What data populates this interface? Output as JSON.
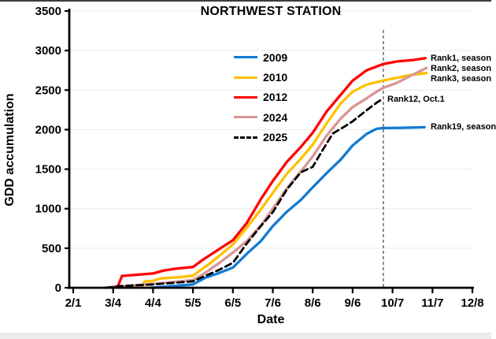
{
  "window": {
    "top_border_color": "#3c3c3c",
    "bottom_strip_color": "#ececec"
  },
  "chart_data": {
    "type": "line",
    "title": "NORTHWEST STATION",
    "xlabel": "Date",
    "ylabel": "GDD accumulation",
    "x_tick_labels": [
      "2/1",
      "3/4",
      "4/4",
      "5/5",
      "6/5",
      "7/6",
      "8/6",
      "9/6",
      "10/7",
      "11/7",
      "12/8"
    ],
    "y_ticks": [
      0,
      500,
      1000,
      1500,
      2000,
      2500,
      3000,
      3500
    ],
    "ylim": [
      0,
      3500
    ],
    "grid": "faint horizontal gridlines at each 500",
    "legend_position": "inside upper-left of plot",
    "x_units_note": "series point x is fractional tick index: 0=2/1, 1=3/4, 2=4/4, 3=5/5, 4=6/5, 5=7/6, 6=8/6, 7=9/6, 8=10/7, 9=11/7, 10=12/8; y is GDD",
    "colors": {
      "axis": "#000000",
      "grid": "#e9e9e9",
      "vline": "#444444"
    },
    "vline": {
      "t": 7.77,
      "label_date": "Oct.1",
      "style": "dashed vertical"
    },
    "draw_order": [
      0,
      1,
      3,
      2,
      4
    ],
    "series": [
      {
        "name": "2009",
        "color": "#147BD1",
        "style": "solid",
        "points": [
          [
            1.95,
            0
          ],
          [
            2.4,
            18
          ],
          [
            3.0,
            42
          ],
          [
            3.3,
            125
          ],
          [
            3.65,
            185
          ],
          [
            4.0,
            255
          ],
          [
            4.35,
            430
          ],
          [
            4.7,
            590
          ],
          [
            5.0,
            780
          ],
          [
            5.35,
            960
          ],
          [
            5.7,
            1110
          ],
          [
            6.0,
            1270
          ],
          [
            6.35,
            1450
          ],
          [
            6.7,
            1620
          ],
          [
            7.0,
            1800
          ],
          [
            7.35,
            1945
          ],
          [
            7.6,
            2010
          ],
          [
            7.77,
            2020
          ],
          [
            8.2,
            2022
          ],
          [
            8.8,
            2030
          ]
        ]
      },
      {
        "name": "2010",
        "color": "#FFC000",
        "style": "solid",
        "points": [
          [
            1.72,
            0
          ],
          [
            1.78,
            78
          ],
          [
            2.0,
            88
          ],
          [
            2.18,
            118
          ],
          [
            2.6,
            132
          ],
          [
            3.0,
            152
          ],
          [
            3.17,
            215
          ],
          [
            3.4,
            300
          ],
          [
            3.7,
            420
          ],
          [
            4.0,
            548
          ],
          [
            4.35,
            760
          ],
          [
            4.7,
            990
          ],
          [
            5.0,
            1200
          ],
          [
            5.35,
            1440
          ],
          [
            5.7,
            1630
          ],
          [
            6.0,
            1810
          ],
          [
            6.35,
            2080
          ],
          [
            6.7,
            2330
          ],
          [
            7.0,
            2480
          ],
          [
            7.35,
            2570
          ],
          [
            7.77,
            2622
          ],
          [
            8.1,
            2655
          ],
          [
            8.5,
            2695
          ],
          [
            8.85,
            2715
          ]
        ]
      },
      {
        "name": "2012",
        "color": "#FF0000",
        "style": "solid",
        "points": [
          [
            1.0,
            0
          ],
          [
            1.12,
            20
          ],
          [
            1.22,
            150
          ],
          [
            1.6,
            165
          ],
          [
            2.0,
            180
          ],
          [
            2.25,
            215
          ],
          [
            2.55,
            240
          ],
          [
            3.0,
            262
          ],
          [
            3.25,
            355
          ],
          [
            3.6,
            470
          ],
          [
            4.0,
            600
          ],
          [
            4.35,
            820
          ],
          [
            4.7,
            1120
          ],
          [
            5.0,
            1350
          ],
          [
            5.35,
            1590
          ],
          [
            5.7,
            1780
          ],
          [
            6.0,
            1960
          ],
          [
            6.35,
            2230
          ],
          [
            6.7,
            2440
          ],
          [
            7.0,
            2620
          ],
          [
            7.35,
            2750
          ],
          [
            7.77,
            2830
          ],
          [
            8.1,
            2862
          ],
          [
            8.5,
            2880
          ],
          [
            8.82,
            2905
          ]
        ]
      },
      {
        "name": "2024",
        "color": "#D99694",
        "style": "solid",
        "points": [
          [
            0.78,
            0
          ],
          [
            1.2,
            18
          ],
          [
            1.6,
            32
          ],
          [
            2.0,
            48
          ],
          [
            2.5,
            72
          ],
          [
            3.0,
            97
          ],
          [
            3.3,
            185
          ],
          [
            3.65,
            310
          ],
          [
            4.0,
            445
          ],
          [
            4.35,
            590
          ],
          [
            4.7,
            790
          ],
          [
            5.0,
            1000
          ],
          [
            5.35,
            1255
          ],
          [
            5.7,
            1470
          ],
          [
            6.0,
            1660
          ],
          [
            6.35,
            1925
          ],
          [
            6.7,
            2140
          ],
          [
            7.0,
            2285
          ],
          [
            7.35,
            2395
          ],
          [
            7.6,
            2480
          ],
          [
            7.77,
            2530
          ],
          [
            8.1,
            2590
          ],
          [
            8.45,
            2680
          ],
          [
            8.85,
            2780
          ]
        ]
      },
      {
        "name": "2025",
        "color": "#000000",
        "style": "dashed",
        "points": [
          [
            0.82,
            0
          ],
          [
            1.2,
            22
          ],
          [
            1.6,
            32
          ],
          [
            2.0,
            42
          ],
          [
            2.5,
            62
          ],
          [
            3.0,
            82
          ],
          [
            3.3,
            148
          ],
          [
            3.65,
            225
          ],
          [
            4.0,
            315
          ],
          [
            4.35,
            560
          ],
          [
            4.7,
            780
          ],
          [
            5.0,
            955
          ],
          [
            5.35,
            1240
          ],
          [
            5.7,
            1460
          ],
          [
            6.0,
            1530
          ],
          [
            6.2,
            1700
          ],
          [
            6.5,
            1950
          ],
          [
            6.8,
            2040
          ],
          [
            7.0,
            2105
          ],
          [
            7.35,
            2245
          ],
          [
            7.6,
            2340
          ],
          [
            7.77,
            2395
          ]
        ]
      }
    ],
    "annotations": [
      {
        "text": "Rank1, season",
        "t": 8.95,
        "gdd": 2900
      },
      {
        "text": "Rank2, season",
        "t": 8.95,
        "gdd": 2770
      },
      {
        "text": "Rank3, season",
        "t": 8.95,
        "gdd": 2640
      },
      {
        "text": "Rank12, Oct.1",
        "t": 7.87,
        "gdd": 2380
      },
      {
        "text": "Rank19, season",
        "t": 8.95,
        "gdd": 2030
      }
    ]
  }
}
